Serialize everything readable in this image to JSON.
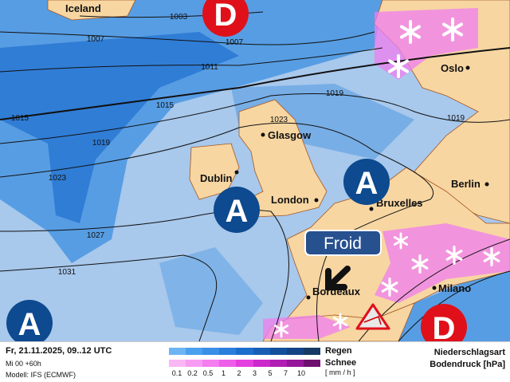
{
  "colors": {
    "ocean": "#a8c8ec",
    "land": "#f7d6a2",
    "rain": "#3d8fe0",
    "snow": "#f07ef0",
    "high": "#0d4a8f",
    "low": "#e0101a",
    "froid_box": "#27508f"
  },
  "cities": [
    {
      "name": "Iceland"
    },
    {
      "name": "Oslo"
    },
    {
      "name": "Glasgow"
    },
    {
      "name": "Dublin"
    },
    {
      "name": "London"
    },
    {
      "name": "Bruxelles"
    },
    {
      "name": "Berlin"
    },
    {
      "name": "Milano"
    },
    {
      "name": "Bordeaux"
    }
  ],
  "isobar_labels": [
    "1003",
    "1007",
    "1007",
    "1011",
    "1015",
    "1015",
    "1019",
    "1019",
    "1019",
    "1023",
    "1023",
    "1027",
    "1031"
  ],
  "pressure_centers": {
    "high_label": "A",
    "low_label": "D"
  },
  "annotation": {
    "label": "Froid",
    "arrow_icon": "arrow-down-left-icon",
    "warning_icon": "wind-warning-icon",
    "snow_icon": "snowflake-icon"
  },
  "legend": {
    "date": "Fr, 21.11.2025, 09..12 UTC",
    "run": "Mi 00 +60h",
    "model": "Modell: IFS (ECMWF)",
    "rain_label": "Regen",
    "snow_label": "Schnee",
    "unit": "[ mm / h ]",
    "ticks": [
      "0.1",
      "0.2",
      "0.5",
      "1",
      "2",
      "3",
      "5",
      "7",
      "10"
    ],
    "rain_colors": [
      "#6db4f5",
      "#4aa0ee",
      "#3a8fe6",
      "#2a7fdc",
      "#1c6ecc",
      "#175fb5",
      "#144f9c",
      "#134384",
      "#153a63"
    ],
    "snow_colors": [
      "#f9b7f5",
      "#f79cf2",
      "#f47def",
      "#ee5ee9",
      "#e43fe0",
      "#cc29cc",
      "#b11eb4",
      "#961799",
      "#6e0f70"
    ],
    "type_label": "Niederschlagsart",
    "pressure_label": "Bodendruck [hPa]"
  }
}
